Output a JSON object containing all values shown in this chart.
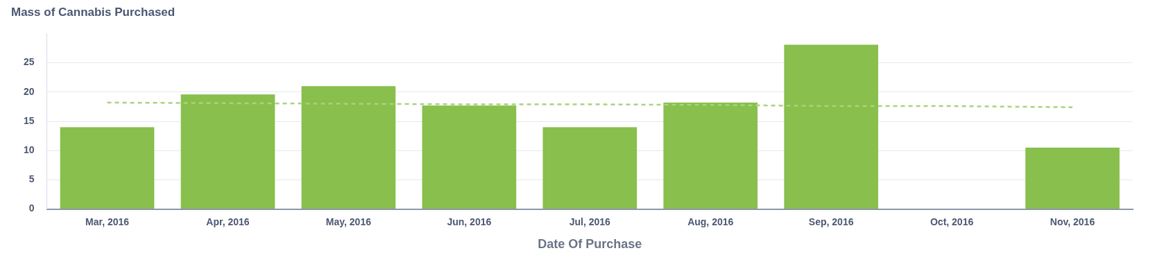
{
  "chart_data": {
    "type": "bar",
    "title": "Mass of Cannabis Purchased",
    "xlabel": "Date Of Purchase",
    "categories": [
      "Mar, 2016",
      "Apr, 2016",
      "May, 2016",
      "Jun, 2016",
      "Jul, 2016",
      "Aug, 2016",
      "Sep, 2016",
      "Oct, 2016",
      "Nov, 2016"
    ],
    "series": [
      {
        "color": "#88bf4d",
        "values": [
          14.0,
          19.6,
          21.0,
          17.7,
          14.0,
          18.2,
          28.1,
          null,
          10.5
        ]
      },
      {
        "type": "line",
        "color": "#a8d47c",
        "line_style": "dashed",
        "marker": "none",
        "values": [
          18.2,
          18.1,
          18.0,
          17.9,
          17.9,
          17.8,
          17.6,
          17.6,
          17.4
        ]
      }
    ],
    "ylim": [
      0,
      30
    ],
    "yticks": [
      0,
      5,
      10,
      15,
      20,
      25
    ],
    "grid": "y",
    "legend": false
  }
}
